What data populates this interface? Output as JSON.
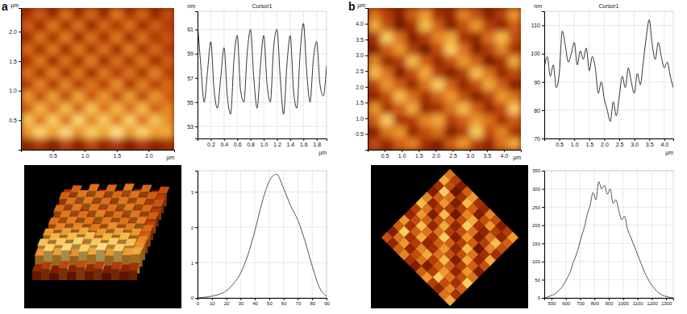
{
  "chart_data": [
    {
      "type": "heatmap",
      "panel": "a",
      "x_label": "µm",
      "y_label": "µm",
      "xlim": [
        0,
        2.4
      ],
      "ylim": [
        0,
        2.4
      ],
      "xticks": [
        0.5,
        {
          "value": 1,
          "label": "1.0"
        },
        1.5,
        {
          "value": 2,
          "label": "2.0"
        }
      ],
      "yticks": [
        0.5,
        {
          "value": 1,
          "label": "1.0"
        },
        1.5,
        {
          "value": 2,
          "label": "2.0"
        }
      ],
      "color_range": [
        0,
        100
      ],
      "cells": [
        [
          40,
          55,
          35,
          60,
          38,
          58,
          36,
          62,
          40,
          57,
          35,
          50
        ],
        [
          55,
          38,
          62,
          40,
          60,
          35,
          58,
          42,
          60,
          38,
          55,
          45
        ],
        [
          38,
          60,
          40,
          63,
          37,
          60,
          40,
          62,
          38,
          60,
          42,
          52
        ],
        [
          58,
          40,
          62,
          38,
          62,
          42,
          60,
          38,
          63,
          40,
          58,
          44
        ],
        [
          42,
          62,
          38,
          60,
          40,
          64,
          38,
          60,
          42,
          62,
          38,
          55
        ],
        [
          60,
          42,
          64,
          40,
          62,
          38,
          62,
          44,
          60,
          40,
          64,
          46
        ],
        [
          45,
          65,
          42,
          66,
          44,
          62,
          46,
          68,
          42,
          64,
          45,
          58
        ],
        [
          70,
          50,
          72,
          48,
          74,
          52,
          70,
          50,
          72,
          48,
          70,
          55
        ],
        [
          55,
          78,
          58,
          80,
          56,
          82,
          60,
          78,
          58,
          80,
          55,
          66
        ],
        [
          82,
          62,
          85,
          60,
          88,
          64,
          84,
          62,
          86,
          60,
          82,
          68
        ],
        [
          70,
          88,
          72,
          90,
          68,
          86,
          74,
          92,
          70,
          88,
          72,
          75
        ],
        [
          35,
          45,
          30,
          48,
          32,
          50,
          35,
          46,
          30,
          44,
          34,
          40
        ]
      ]
    },
    {
      "type": "line",
      "title": "Cursor1",
      "x_label": "µm",
      "y_label": "nm",
      "color": "#333333",
      "grid": true,
      "x": [
        0,
        0.05,
        0.1,
        0.15,
        0.2,
        0.25,
        0.3,
        0.35,
        0.4,
        0.45,
        0.5,
        0.55,
        0.6,
        0.65,
        0.7,
        0.75,
        0.8,
        0.85,
        0.9,
        0.95,
        1,
        1.05,
        1.1,
        1.15,
        1.2,
        1.25,
        1.3,
        1.35,
        1.4,
        1.45,
        1.5,
        1.55,
        1.6,
        1.65,
        1.7,
        1.75,
        1.8,
        1.85,
        1.9,
        1.95
      ],
      "values": [
        61.5,
        58,
        55,
        57.5,
        60,
        56,
        54.5,
        57,
        59.5,
        55.5,
        54,
        58.5,
        60.5,
        56,
        55,
        59,
        61,
        57,
        54.5,
        58,
        60.5,
        56.5,
        55,
        59.5,
        61,
        57,
        54,
        58,
        60.5,
        56,
        54.5,
        59,
        61.5,
        57.5,
        55,
        58.5,
        60,
        56.5,
        55.5,
        58
      ],
      "xlim": [
        0,
        1.95
      ],
      "ylim": [
        52,
        62.5
      ],
      "xticks": [
        0.2,
        0.4,
        0.6,
        0.8,
        {
          "value": 1,
          "label": "1.0"
        },
        1.2,
        1.4,
        1.6,
        1.8
      ],
      "yticks": [
        53,
        55,
        57,
        59,
        61
      ]
    },
    {
      "type": "line",
      "color": "#555555",
      "grid": true,
      "x": [
        0,
        5,
        10,
        15,
        20,
        25,
        30,
        35,
        40,
        45,
        50,
        55,
        60,
        65,
        70,
        75,
        80,
        85,
        90
      ],
      "values": [
        0,
        0.02,
        0.05,
        0.1,
        0.2,
        0.4,
        0.7,
        1.2,
        1.9,
        2.7,
        3.3,
        3.5,
        3.1,
        2.6,
        2.2,
        1.6,
        0.9,
        0.3,
        0.05
      ],
      "xlim": [
        0,
        90
      ],
      "ylim": [
        0,
        3.6
      ],
      "xticks": [
        0,
        10,
        20,
        30,
        40,
        50,
        60,
        70,
        80,
        90
      ],
      "yticks": [
        0,
        1,
        2,
        3
      ]
    },
    {
      "type": "heatmap",
      "panel": "b",
      "x_label": "µm",
      "y_label": "µm",
      "xlim": [
        0,
        4.5
      ],
      "ylim": [
        0,
        4.5
      ],
      "xticks": [
        0.5,
        {
          "value": 1,
          "label": "1.0"
        },
        1.5,
        {
          "value": 2,
          "label": "2.0"
        },
        2.5,
        {
          "value": 3,
          "label": "3.0"
        },
        3.5,
        {
          "value": 4,
          "label": "4.0"
        }
      ],
      "yticks": [
        0.5,
        {
          "value": 1,
          "label": "1.0"
        },
        1.5,
        {
          "value": 2,
          "label": "2.0"
        },
        2.5,
        {
          "value": 3,
          "label": "3.0"
        },
        3.5,
        {
          "value": 4,
          "label": "4.0"
        }
      ],
      "color_range": [
        0,
        100
      ],
      "cells": [
        [
          60,
          45,
          30,
          55,
          70,
          40,
          35,
          65,
          50,
          30,
          45,
          70
        ],
        [
          75,
          50,
          25,
          40,
          80,
          55,
          30,
          50,
          70,
          45,
          35,
          55
        ],
        [
          40,
          85,
          60,
          30,
          45,
          65,
          75,
          40,
          35,
          60,
          80,
          50
        ],
        [
          30,
          55,
          70,
          45,
          25,
          50,
          85,
          60,
          30,
          45,
          65,
          40
        ],
        [
          65,
          35,
          45,
          80,
          55,
          35,
          50,
          70,
          55,
          25,
          40,
          75
        ],
        [
          80,
          60,
          30,
          50,
          75,
          45,
          30,
          45,
          80,
          60,
          35,
          50
        ],
        [
          45,
          70,
          55,
          35,
          60,
          85,
          55,
          35,
          50,
          75,
          55,
          30
        ],
        [
          35,
          50,
          80,
          60,
          40,
          55,
          70,
          50,
          30,
          45,
          70,
          60
        ],
        [
          70,
          40,
          55,
          75,
          35,
          40,
          60,
          80,
          55,
          35,
          50,
          85
        ],
        [
          55,
          85,
          40,
          45,
          65,
          75,
          45,
          55,
          70,
          60,
          40,
          55
        ],
        [
          30,
          60,
          70,
          35,
          50,
          60,
          30,
          45,
          85,
          50,
          65,
          40
        ],
        [
          50,
          35,
          55,
          65,
          40,
          30,
          55,
          70,
          45,
          35,
          60,
          75
        ]
      ]
    },
    {
      "type": "line",
      "title": "Cursor1",
      "x_label": "µm",
      "y_label": "nm",
      "color": "#333333",
      "grid": true,
      "x": [
        0,
        0.1,
        0.2,
        0.3,
        0.4,
        0.5,
        0.6,
        0.7,
        0.8,
        0.9,
        1,
        1.1,
        1.2,
        1.3,
        1.4,
        1.5,
        1.6,
        1.7,
        1.8,
        1.9,
        2,
        2.1,
        2.2,
        2.3,
        2.4,
        2.5,
        2.6,
        2.7,
        2.8,
        2.9,
        3,
        3.1,
        3.2,
        3.3,
        3.4,
        3.5,
        3.6,
        3.7,
        3.8,
        3.9,
        4,
        4.1,
        4.2,
        4.3
      ],
      "values": [
        95,
        99,
        92,
        96,
        88,
        93,
        108,
        103,
        97,
        100,
        104,
        96,
        101,
        98,
        102,
        94,
        99,
        95,
        86,
        90,
        84,
        80,
        76,
        83,
        78,
        85,
        92,
        88,
        95,
        90,
        86,
        93,
        89,
        97,
        106,
        112,
        103,
        98,
        104,
        99,
        95,
        97,
        92,
        88
      ],
      "xlim": [
        0,
        4.3
      ],
      "ylim": [
        70,
        115
      ],
      "xticks": [
        0.5,
        {
          "value": 1,
          "label": "1.0"
        },
        1.5,
        {
          "value": 2,
          "label": "2.0"
        },
        2.5,
        {
          "value": 3,
          "label": "3.0"
        },
        3.5,
        {
          "value": 4,
          "label": "4.0"
        }
      ],
      "yticks": [
        70,
        80,
        90,
        100,
        110
      ]
    },
    {
      "type": "line",
      "color": "#555555",
      "grid": true,
      "x": [
        450,
        470,
        490,
        510,
        530,
        550,
        570,
        590,
        610,
        630,
        650,
        670,
        690,
        710,
        730,
        750,
        770,
        790,
        810,
        830,
        850,
        870,
        890,
        910,
        930,
        950,
        970,
        990,
        1010,
        1030,
        1050,
        1070,
        1090,
        1110,
        1130,
        1150,
        1170,
        1190,
        1210,
        1230,
        1250,
        1270,
        1290,
        1310,
        1330,
        1350
      ],
      "values": [
        0,
        2,
        5,
        8,
        12,
        20,
        28,
        40,
        55,
        70,
        95,
        115,
        140,
        170,
        195,
        230,
        255,
        290,
        270,
        320,
        300,
        310,
        285,
        300,
        260,
        270,
        240,
        215,
        225,
        190,
        170,
        150,
        130,
        110,
        90,
        70,
        55,
        40,
        30,
        20,
        14,
        8,
        5,
        3,
        1,
        0
      ],
      "xlim": [
        450,
        1350
      ],
      "ylim": [
        0,
        350
      ],
      "xticks": [
        500,
        600,
        700,
        800,
        900,
        1000,
        1100,
        1200,
        1300
      ],
      "yticks": [
        0,
        50,
        100,
        150,
        200,
        250,
        300,
        350
      ]
    }
  ]
}
